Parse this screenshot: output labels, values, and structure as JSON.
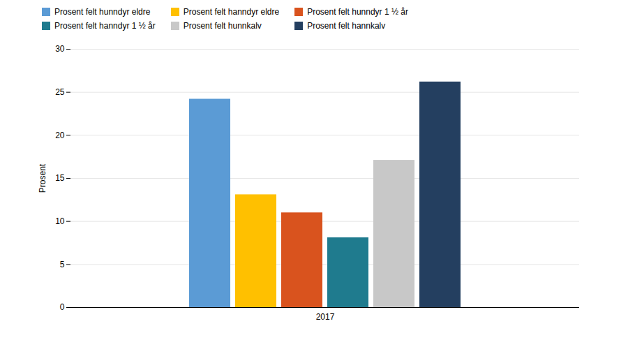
{
  "chart_data": {
    "type": "bar",
    "categories": [
      "2017"
    ],
    "series": [
      {
        "name": "Prosent felt hunndyr eldre",
        "color": "#5B9BD5",
        "values": [
          24.2
        ]
      },
      {
        "name": "Prosent felt hanndyr eldre",
        "color": "#FFC000",
        "values": [
          13.1
        ]
      },
      {
        "name": "Prosent felt hunndyr 1 ½ år",
        "color": "#D9531E",
        "values": [
          11.0
        ]
      },
      {
        "name": "Prosent felt hanndyr 1 ½ år",
        "color": "#1F7B8E",
        "values": [
          8.1
        ]
      },
      {
        "name": "Prosent felt hunnkalv",
        "color": "#C8C8C8",
        "values": [
          17.1
        ]
      },
      {
        "name": "Prosent felt hannkalv",
        "color": "#243F60",
        "values": [
          26.2
        ]
      }
    ],
    "ylabel": "Prosent",
    "ylim": [
      0,
      30
    ],
    "yticks": [
      0,
      5,
      10,
      15,
      20,
      25,
      30
    ],
    "grid": true,
    "legend": "upper left"
  }
}
